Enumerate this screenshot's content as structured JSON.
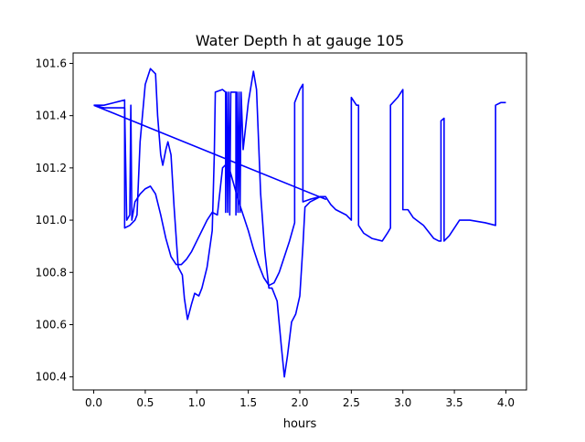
{
  "chart_data": {
    "type": "line",
    "title": "Water Depth h at gauge 105",
    "xlabel": "hours",
    "ylabel": "",
    "xlim": [
      -0.2,
      4.2
    ],
    "ylim": [
      100.35,
      101.64
    ],
    "xticks": [
      0.0,
      0.5,
      1.0,
      1.5,
      2.0,
      2.5,
      3.0,
      3.5,
      4.0
    ],
    "xtick_labels": [
      "0.0",
      "0.5",
      "1.0",
      "1.5",
      "2.0",
      "2.5",
      "3.0",
      "3.5",
      "4.0"
    ],
    "yticks": [
      100.4,
      100.6,
      100.8,
      101.0,
      101.2,
      101.4,
      101.6
    ],
    "ytick_labels": [
      "100.4",
      "100.6",
      "100.8",
      "101.0",
      "101.2",
      "101.4",
      "101.6"
    ],
    "grid": false,
    "series": [
      {
        "color": "#0000ff",
        "points": [
          [
            0.0,
            101.44
          ],
          [
            0.1,
            101.44
          ],
          [
            0.2,
            101.45
          ],
          [
            0.3,
            101.46
          ],
          [
            0.3,
            100.97
          ],
          [
            0.35,
            100.98
          ],
          [
            0.4,
            101.0
          ],
          [
            0.42,
            101.02
          ],
          [
            0.45,
            101.3
          ],
          [
            0.5,
            101.52
          ],
          [
            0.55,
            101.58
          ],
          [
            0.6,
            101.56
          ],
          [
            0.62,
            101.4
          ],
          [
            0.65,
            101.25
          ],
          [
            0.67,
            101.21
          ],
          [
            0.7,
            101.27
          ],
          [
            0.72,
            101.3
          ],
          [
            0.75,
            101.25
          ],
          [
            0.78,
            101.05
          ],
          [
            0.82,
            100.82
          ],
          [
            0.86,
            100.79
          ],
          [
            0.88,
            100.7
          ],
          [
            0.91,
            100.62
          ],
          [
            0.95,
            100.68
          ],
          [
            0.98,
            100.72
          ],
          [
            1.02,
            100.71
          ],
          [
            1.05,
            100.74
          ],
          [
            1.1,
            100.82
          ],
          [
            1.15,
            100.96
          ],
          [
            1.17,
            101.25
          ],
          [
            1.18,
            101.49
          ],
          [
            1.25,
            101.5
          ],
          [
            1.28,
            101.49
          ],
          [
            1.28,
            101.03
          ],
          [
            1.29,
            101.49
          ],
          [
            1.3,
            101.03
          ],
          [
            1.31,
            101.49
          ],
          [
            1.32,
            101.02
          ],
          [
            1.33,
            101.49
          ],
          [
            1.38,
            101.49
          ],
          [
            1.38,
            101.02
          ],
          [
            1.39,
            101.49
          ],
          [
            1.4,
            101.03
          ],
          [
            1.41,
            101.49
          ],
          [
            1.42,
            101.03
          ],
          [
            1.43,
            101.49
          ],
          [
            1.45,
            101.27
          ],
          [
            1.5,
            101.45
          ],
          [
            1.55,
            101.57
          ],
          [
            1.58,
            101.5
          ],
          [
            1.62,
            101.1
          ],
          [
            1.66,
            100.88
          ],
          [
            1.7,
            100.74
          ],
          [
            1.73,
            100.74
          ],
          [
            1.78,
            100.69
          ],
          [
            1.82,
            100.52
          ],
          [
            1.85,
            100.4
          ],
          [
            1.88,
            100.48
          ],
          [
            1.92,
            100.61
          ],
          [
            1.96,
            100.64
          ],
          [
            2.0,
            100.71
          ],
          [
            2.03,
            100.9
          ],
          [
            2.05,
            101.05
          ],
          [
            2.1,
            101.07
          ],
          [
            2.15,
            101.08
          ],
          [
            2.2,
            101.09
          ],
          [
            2.25,
            101.09
          ],
          [
            2.3,
            101.06
          ],
          [
            2.35,
            101.04
          ],
          [
            2.4,
            101.03
          ],
          [
            2.45,
            101.02
          ],
          [
            2.5,
            101.0
          ],
          [
            2.5,
            101.47
          ],
          [
            2.55,
            101.44
          ],
          [
            2.57,
            101.44
          ],
          [
            2.57,
            100.98
          ],
          [
            2.62,
            100.95
          ],
          [
            2.7,
            100.93
          ],
          [
            2.8,
            100.92
          ],
          [
            2.85,
            100.95
          ],
          [
            2.88,
            100.97
          ],
          [
            2.88,
            101.44
          ],
          [
            2.95,
            101.47
          ],
          [
            3.0,
            101.5
          ],
          [
            3.0,
            101.04
          ],
          [
            3.05,
            101.04
          ],
          [
            3.1,
            101.01
          ],
          [
            3.2,
            100.98
          ],
          [
            3.3,
            100.93
          ],
          [
            3.35,
            100.92
          ],
          [
            3.37,
            100.92
          ],
          [
            3.37,
            101.38
          ],
          [
            3.4,
            101.39
          ],
          [
            3.4,
            100.92
          ],
          [
            3.45,
            100.94
          ],
          [
            3.5,
            100.97
          ],
          [
            3.55,
            101.0
          ],
          [
            3.65,
            101.0
          ],
          [
            3.8,
            100.99
          ],
          [
            3.9,
            100.98
          ],
          [
            3.9,
            101.44
          ],
          [
            3.95,
            101.45
          ],
          [
            4.0,
            101.45
          ]
        ]
      },
      {
        "color": "#0000ff",
        "points": [
          [
            0.0,
            101.44
          ],
          [
            0.1,
            101.43
          ],
          [
            0.2,
            101.43
          ],
          [
            0.3,
            101.43
          ],
          [
            0.32,
            101.0
          ],
          [
            0.35,
            101.02
          ],
          [
            0.36,
            101.44
          ],
          [
            0.37,
            101.0
          ],
          [
            0.4,
            101.07
          ],
          [
            0.45,
            101.1
          ],
          [
            0.5,
            101.12
          ],
          [
            0.55,
            101.13
          ],
          [
            0.6,
            101.1
          ],
          [
            0.65,
            101.02
          ],
          [
            0.7,
            100.93
          ],
          [
            0.75,
            100.86
          ],
          [
            0.8,
            100.83
          ],
          [
            0.85,
            100.83
          ],
          [
            0.9,
            100.85
          ],
          [
            0.95,
            100.88
          ],
          [
            1.0,
            100.92
          ],
          [
            1.05,
            100.96
          ],
          [
            1.1,
            101.0
          ],
          [
            1.15,
            101.03
          ],
          [
            1.2,
            101.02
          ],
          [
            1.25,
            101.2
          ],
          [
            1.3,
            101.22
          ],
          [
            1.35,
            101.15
          ],
          [
            1.4,
            101.08
          ],
          [
            1.45,
            101.02
          ],
          [
            1.5,
            100.96
          ],
          [
            1.55,
            100.89
          ],
          [
            1.6,
            100.83
          ],
          [
            1.65,
            100.78
          ],
          [
            1.7,
            100.75
          ],
          [
            1.75,
            100.76
          ],
          [
            1.8,
            100.8
          ],
          [
            1.85,
            100.86
          ],
          [
            1.9,
            100.92
          ],
          [
            1.95,
            100.99
          ],
          [
            1.95,
            101.45
          ],
          [
            2.0,
            101.5
          ],
          [
            2.03,
            101.52
          ],
          [
            2.03,
            101.07
          ],
          [
            2.1,
            101.08
          ],
          [
            2.2,
            101.09
          ],
          [
            2.25,
            101.08
          ],
          [
            0.0,
            101.44
          ]
        ]
      }
    ]
  }
}
